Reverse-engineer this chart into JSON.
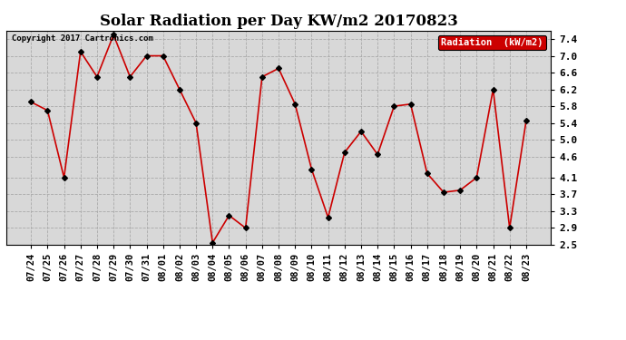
{
  "title": "Solar Radiation per Day KW/m2 20170823",
  "copyright_text": "Copyright 2017 Cartronics.com",
  "legend_label": "Radiation  (kW/m2)",
  "dates": [
    "07/24",
    "07/25",
    "07/26",
    "07/27",
    "07/28",
    "07/29",
    "07/30",
    "07/31",
    "08/01",
    "08/02",
    "08/03",
    "08/04",
    "08/05",
    "08/06",
    "08/07",
    "08/08",
    "08/09",
    "08/10",
    "08/11",
    "08/12",
    "08/13",
    "08/14",
    "08/15",
    "08/16",
    "08/17",
    "08/18",
    "08/19",
    "08/20",
    "08/21",
    "08/22",
    "08/23"
  ],
  "values": [
    5.9,
    5.7,
    4.1,
    7.1,
    6.5,
    7.5,
    6.5,
    7.0,
    7.0,
    6.2,
    5.4,
    2.55,
    3.2,
    2.9,
    6.5,
    6.7,
    5.85,
    4.3,
    3.15,
    4.7,
    5.2,
    4.65,
    5.8,
    5.85,
    4.2,
    3.75,
    3.8,
    4.1,
    6.2,
    2.9,
    5.45
  ],
  "line_color": "#cc0000",
  "marker_color": "#000000",
  "bg_color": "#d8d8d8",
  "plot_bg_color": "#d8d8d8",
  "outer_bg_color": "#ffffff",
  "grid_color": "#aaaaaa",
  "ylim": [
    2.5,
    7.6
  ],
  "yticks": [
    2.5,
    2.9,
    3.3,
    3.7,
    4.1,
    4.6,
    5.0,
    5.4,
    5.8,
    6.2,
    6.6,
    7.0,
    7.4
  ],
  "legend_bg": "#cc0000",
  "legend_text_color": "#ffffff",
  "title_fontsize": 12,
  "tick_fontsize": 7.5,
  "ytick_fontsize": 8
}
